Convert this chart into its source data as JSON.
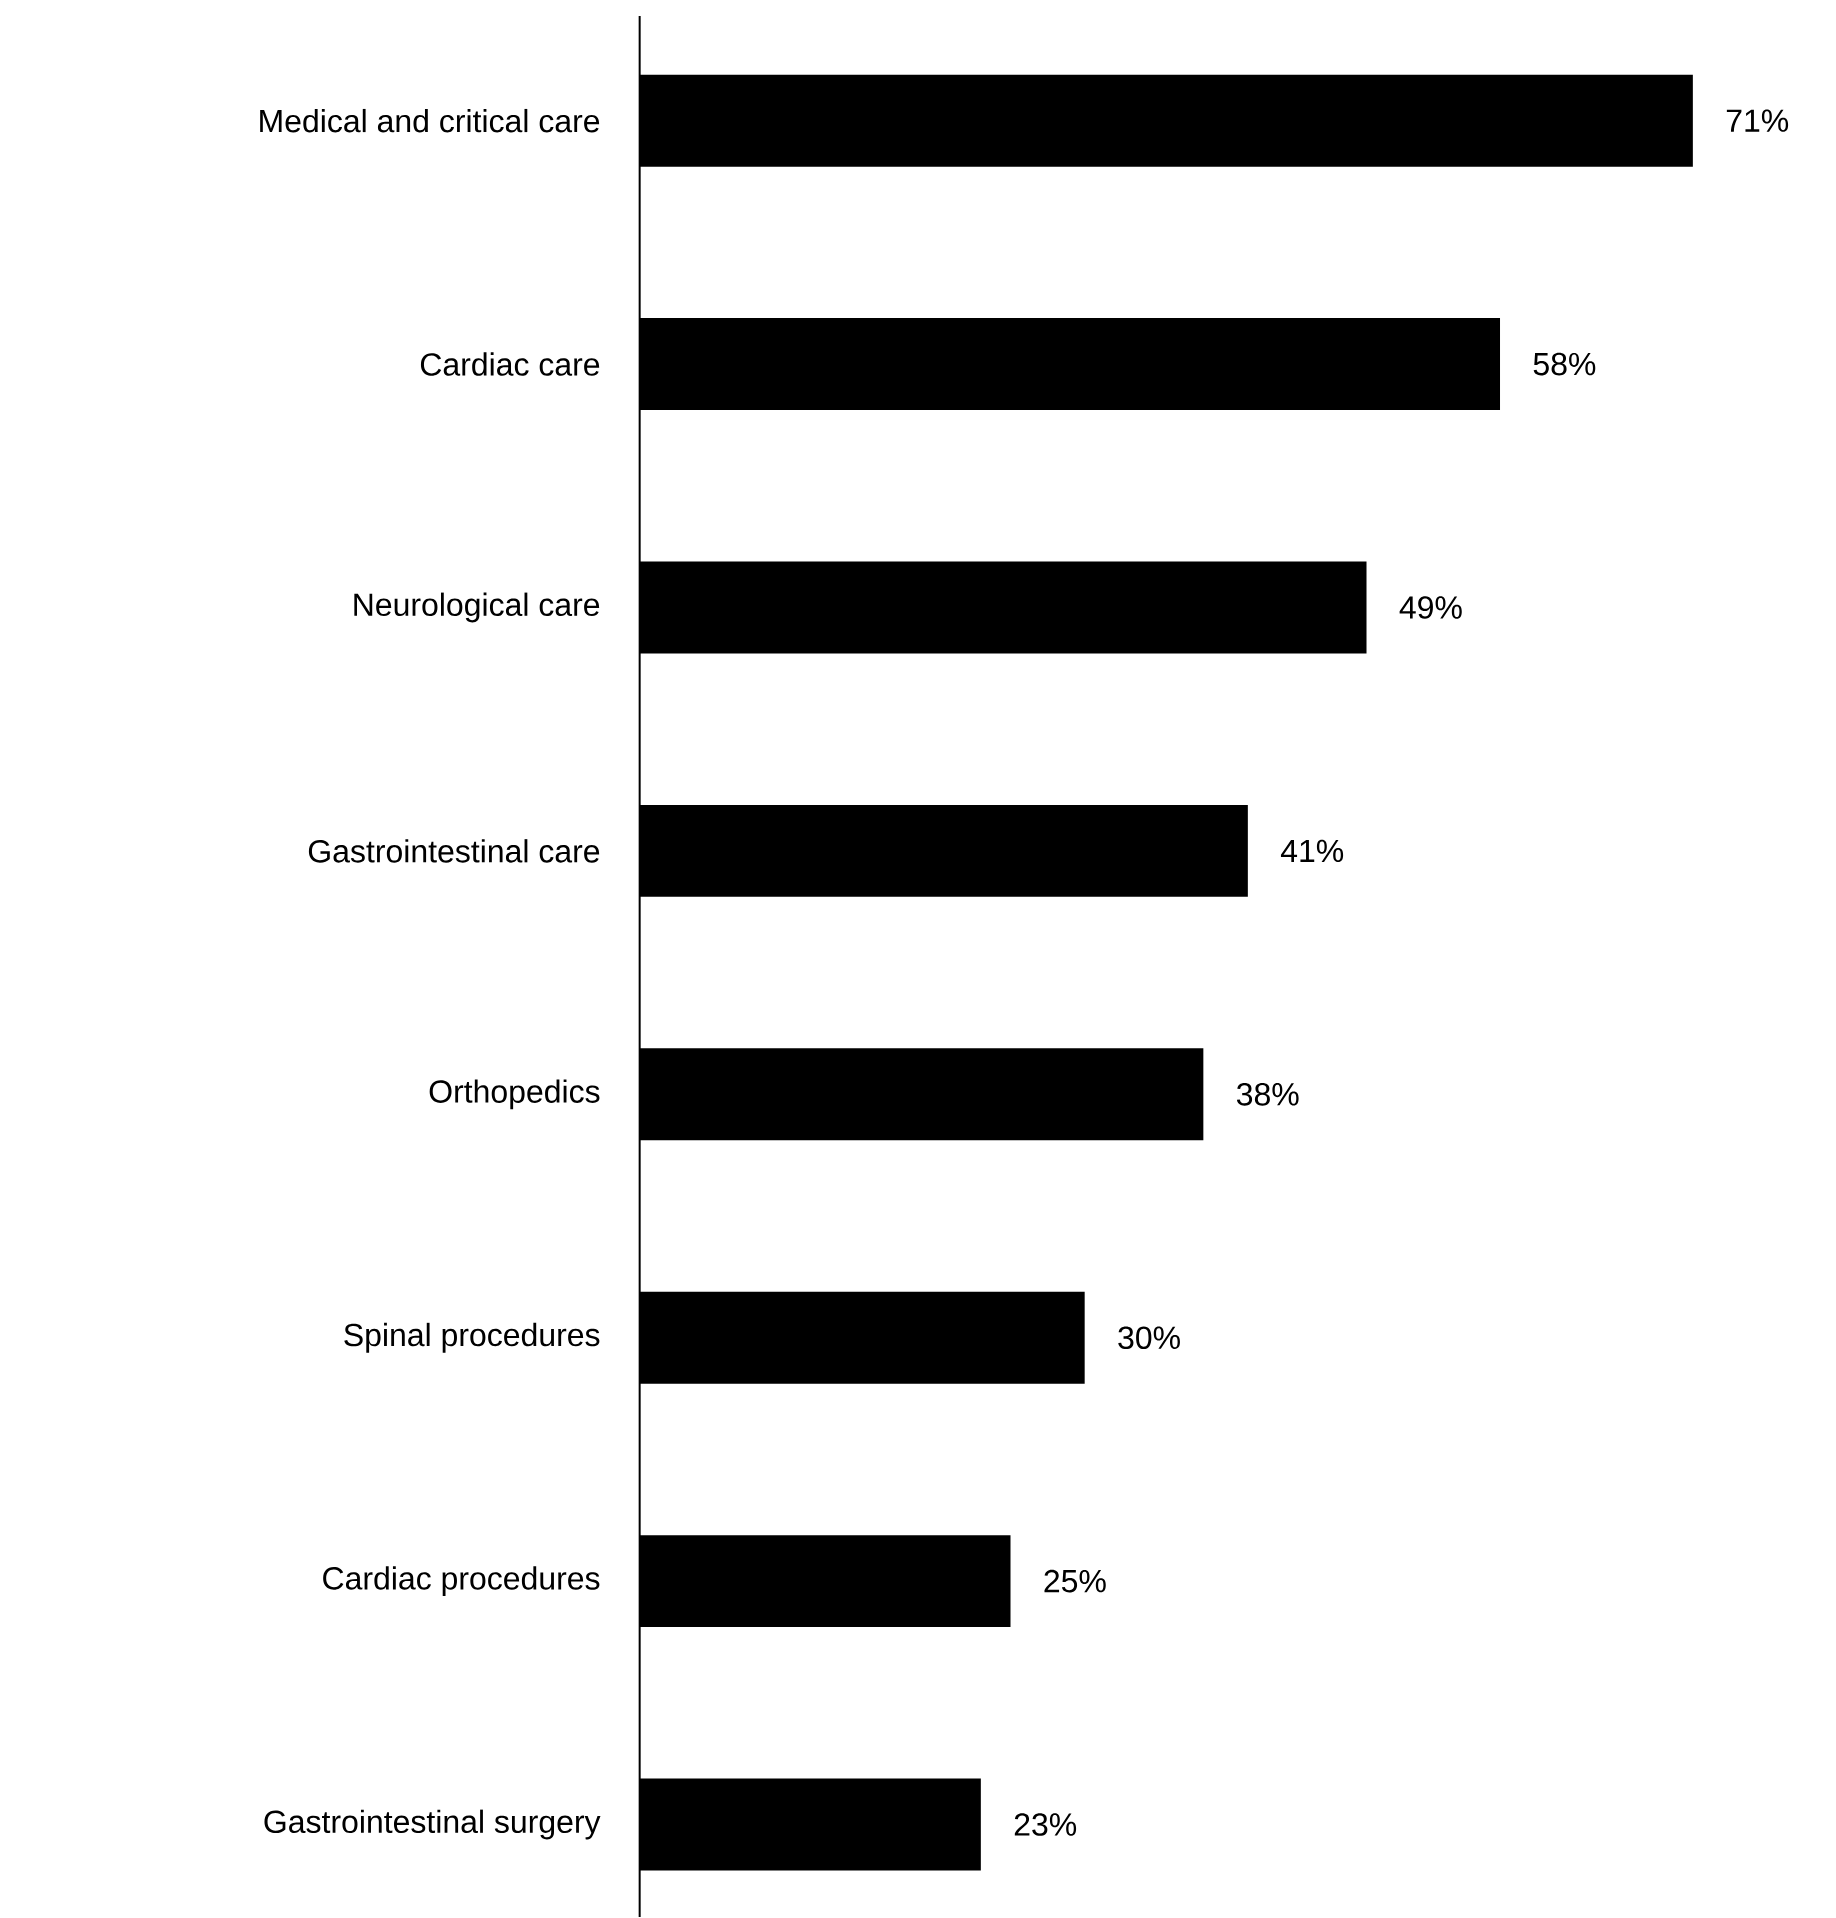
{
  "chart_data": {
    "type": "bar",
    "orientation": "horizontal",
    "categories": [
      "Medical and critical care",
      "Cardiac care",
      "Neurological care",
      "Gastrointestinal care",
      "Orthopedics",
      "Spinal procedures",
      "Cardiac procedures",
      "Gastrointestinal surgery"
    ],
    "values": [
      71,
      58,
      49,
      41,
      38,
      30,
      25,
      23
    ],
    "value_labels": [
      "71%",
      "58%",
      "49%",
      "41%",
      "38%",
      "30%",
      "25%",
      "23%"
    ],
    "color": "#000000"
  }
}
